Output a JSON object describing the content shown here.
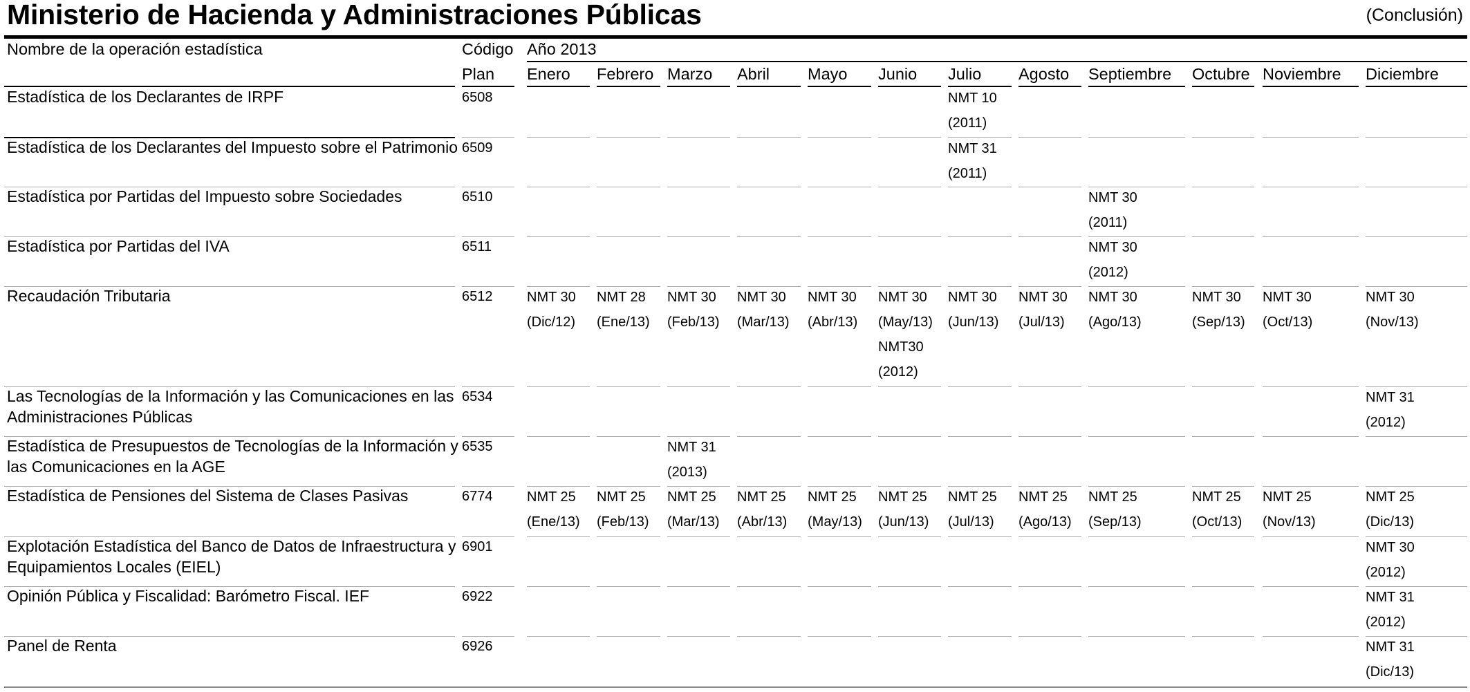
{
  "title": "Ministerio de Hacienda y Administraciones Públicas",
  "conclusion": "(Conclusión)",
  "header": {
    "name": "Nombre de la operación estadística",
    "code_line1": "Código",
    "code_line2": "Plan",
    "year": "Año 2013"
  },
  "months": [
    "Enero",
    "Febrero",
    "Marzo",
    "Abril",
    "Mayo",
    "Junio",
    "Julio",
    "Agosto",
    "Septiembre",
    "Octubre",
    "Noviembre",
    "Diciembre"
  ],
  "rows": [
    {
      "name": "Estadística de los Declarantes de IRPF",
      "code": "6508",
      "cells": {
        "6": [
          "NMT 10",
          "(2011)"
        ]
      }
    },
    {
      "name": "Estadística de los Declarantes del Impuesto sobre el Patrimonio",
      "code": "6509",
      "cells": {
        "6": [
          "NMT 31",
          "(2011)"
        ]
      }
    },
    {
      "name": "Estadística por Partidas del Impuesto sobre Sociedades",
      "code": "6510",
      "cells": {
        "8": [
          "NMT 30",
          "(2011)"
        ]
      }
    },
    {
      "name": "Estadística por Partidas del IVA",
      "code": "6511",
      "cells": {
        "8": [
          "NMT 30",
          "(2012)"
        ]
      }
    },
    {
      "name": "Recaudación Tributaria",
      "code": "6512",
      "cells": {
        "0": [
          "NMT 30",
          "(Dic/12)"
        ],
        "1": [
          "NMT 28",
          "(Ene/13)"
        ],
        "2": [
          "NMT 30",
          "(Feb/13)"
        ],
        "3": [
          "NMT 30",
          "(Mar/13)"
        ],
        "4": [
          "NMT 30",
          "(Abr/13)"
        ],
        "5": [
          "NMT 30",
          "(May/13)",
          "NMT30",
          "(2012)"
        ],
        "6": [
          "NMT 30",
          "(Jun/13)"
        ],
        "7": [
          "NMT 30",
          "(Jul/13)"
        ],
        "8": [
          "NMT 30",
          "(Ago/13)"
        ],
        "9": [
          "NMT 30",
          "(Sep/13)"
        ],
        "10": [
          "NMT 30",
          "(Oct/13)"
        ],
        "11": [
          "NMT 30",
          "(Nov/13)"
        ]
      }
    },
    {
      "name": "Las Tecnologías de la Información y las Comunicaciones en las Administraciones Públicas",
      "code": "6534",
      "cells": {
        "11": [
          "NMT 31",
          "(2012)"
        ]
      }
    },
    {
      "name": "Estadística de Presupuestos de Tecnologías de la Información y las Comunicaciones en la AGE",
      "code": "6535",
      "cells": {
        "2": [
          "NMT 31",
          "(2013)"
        ]
      }
    },
    {
      "name": "Estadística de Pensiones del Sistema de Clases Pasivas",
      "code": "6774",
      "cells": {
        "0": [
          "NMT 25",
          "(Ene/13)"
        ],
        "1": [
          "NMT 25",
          "(Feb/13)"
        ],
        "2": [
          "NMT 25",
          "(Mar/13)"
        ],
        "3": [
          "NMT 25",
          "(Abr/13)"
        ],
        "4": [
          "NMT 25",
          "(May/13)"
        ],
        "5": [
          "NMT 25",
          "(Jun/13)"
        ],
        "6": [
          "NMT 25",
          "(Jul/13)"
        ],
        "7": [
          "NMT 25",
          "(Ago/13)"
        ],
        "8": [
          "NMT 25",
          "(Sep/13)"
        ],
        "9": [
          "NMT 25",
          "(Oct/13)"
        ],
        "10": [
          "NMT 25",
          "(Nov/13)"
        ],
        "11": [
          "NMT 25",
          "(Dic/13)"
        ]
      }
    },
    {
      "name": "Explotación Estadística del Banco de Datos de Infraestructura y Equipamientos Locales (EIEL)",
      "code": "6901",
      "cells": {
        "11": [
          "NMT 30",
          "(2012)"
        ]
      }
    },
    {
      "name": "Opinión Pública y Fiscalidad: Barómetro Fiscal. IEF",
      "code": "6922",
      "cells": {
        "11": [
          "NMT 31",
          "(2012)"
        ]
      }
    },
    {
      "name": "Panel de Renta",
      "code": "6926",
      "cells": {
        "11": [
          "NMT 31",
          "(Dic/13)"
        ]
      }
    }
  ]
}
